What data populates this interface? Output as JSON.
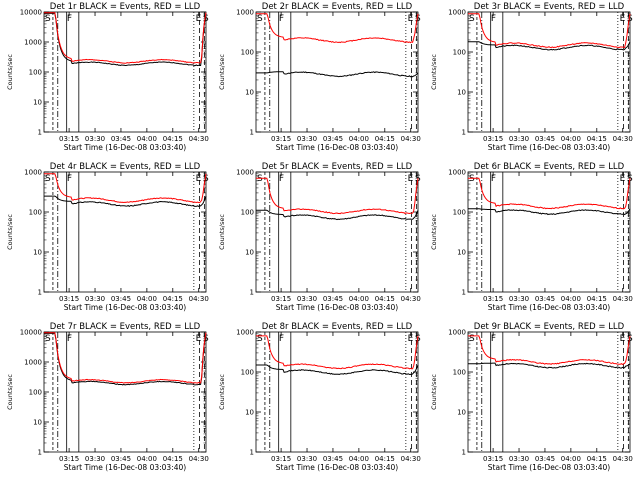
{
  "chart_data": [
    {
      "type": "line",
      "title": "Det 1r BLACK = Events, RED = LLD",
      "xlabel": "Start Time (16-Dec-08 03:03:40)",
      "ylabel": "Counts/sec",
      "y_scale": "log",
      "ylim": [
        1,
        10000
      ],
      "yticks": [
        "1",
        "10",
        "100",
        "1000",
        "10000"
      ],
      "xticks": [
        "03:15",
        "03:30",
        "03:45",
        "04:00",
        "04:15",
        "04:30"
      ],
      "markers": [
        "S",
        "F",
        "E",
        "S"
      ],
      "series": [
        {
          "name": "Events",
          "color": "#000000",
          "start": 9000,
          "plateau": 190,
          "end": 180
        },
        {
          "name": "LLD",
          "color": "#ff0000",
          "start": 9500,
          "plateau": 230,
          "end": 220
        }
      ]
    },
    {
      "type": "line",
      "title": "Det 2r BLACK = Events, RED = LLD",
      "xlabel": "Start Time (16-Dec-08 03:03:40)",
      "ylabel": "Counts/sec",
      "y_scale": "log",
      "ylim": [
        1,
        1000
      ],
      "yticks": [
        "1",
        "10",
        "100",
        "1000"
      ],
      "xticks": [
        "03:15",
        "03:30",
        "03:45",
        "04:00",
        "04:15",
        "04:30"
      ],
      "markers": [
        "S",
        "F",
        "E",
        "S"
      ],
      "series": [
        {
          "name": "Events",
          "color": "#000000",
          "start": 30,
          "plateau": 28,
          "end": 25
        },
        {
          "name": "LLD",
          "color": "#ff0000",
          "start": 900,
          "plateau": 200,
          "end": 210
        }
      ]
    },
    {
      "type": "line",
      "title": "Det 3r BLACK = Events, RED = LLD",
      "xlabel": "Start Time (16-Dec-08 03:03:40)",
      "ylabel": "Counts/sec",
      "y_scale": "log",
      "ylim": [
        1,
        1000
      ],
      "yticks": [
        "1",
        "10",
        "100",
        "1000"
      ],
      "xticks": [
        "03:15",
        "03:30",
        "03:45",
        "04:00",
        "04:15",
        "04:30"
      ],
      "markers": [
        "S",
        "F",
        "E",
        "S"
      ],
      "series": [
        {
          "name": "Events",
          "color": "#000000",
          "start": 180,
          "plateau": 130,
          "end": 125
        },
        {
          "name": "LLD",
          "color": "#ff0000",
          "start": 900,
          "plateau": 150,
          "end": 160
        }
      ]
    },
    {
      "type": "line",
      "title": "Det 4r BLACK = Events, RED = LLD",
      "xlabel": "Start Time (16-Dec-08 03:03:40)",
      "ylabel": "Counts/sec",
      "y_scale": "log",
      "ylim": [
        1,
        1000
      ],
      "yticks": [
        "1",
        "10",
        "100",
        "1000"
      ],
      "xticks": [
        "03:15",
        "03:30",
        "03:45",
        "04:00",
        "04:15",
        "04:30"
      ],
      "markers": [
        "S",
        "F",
        "E",
        "S"
      ],
      "series": [
        {
          "name": "Events",
          "color": "#000000",
          "start": 250,
          "plateau": 160,
          "end": 150
        },
        {
          "name": "LLD",
          "color": "#ff0000",
          "start": 900,
          "plateau": 200,
          "end": 190
        }
      ]
    },
    {
      "type": "line",
      "title": "Det 5r BLACK = Events, RED = LLD",
      "xlabel": "Start Time (16-Dec-08 03:03:40)",
      "ylabel": "Counts/sec",
      "y_scale": "log",
      "ylim": [
        1,
        1000
      ],
      "yticks": [
        "1",
        "10",
        "100",
        "1000"
      ],
      "xticks": [
        "03:15",
        "03:30",
        "03:45",
        "04:00",
        "04:15",
        "04:30"
      ],
      "markers": [
        "S",
        "F",
        "E",
        "S"
      ],
      "series": [
        {
          "name": "Events",
          "color": "#000000",
          "start": 110,
          "plateau": 75,
          "end": 70
        },
        {
          "name": "LLD",
          "color": "#ff0000",
          "start": 700,
          "plateau": 105,
          "end": 100
        }
      ]
    },
    {
      "type": "line",
      "title": "Det 6r BLACK = Events, RED = LLD",
      "xlabel": "Start Time (16-Dec-08 03:03:40)",
      "ylabel": "Counts/sec",
      "y_scale": "log",
      "ylim": [
        1,
        1000
      ],
      "yticks": [
        "1",
        "10",
        "100",
        "1000"
      ],
      "xticks": [
        "03:15",
        "03:30",
        "03:45",
        "04:00",
        "04:15",
        "04:30"
      ],
      "markers": [
        "S",
        "F",
        "E",
        "S"
      ],
      "series": [
        {
          "name": "Events",
          "color": "#000000",
          "start": 120,
          "plateau": 100,
          "end": 90
        },
        {
          "name": "LLD",
          "color": "#ff0000",
          "start": 700,
          "plateau": 140,
          "end": 130
        }
      ]
    },
    {
      "type": "line",
      "title": "Det 7r BLACK = Events, RED = LLD",
      "xlabel": "Start Time (16-Dec-08 03:03:40)",
      "ylabel": "Counts/sec",
      "y_scale": "log",
      "ylim": [
        1,
        10000
      ],
      "yticks": [
        "1",
        "10",
        "100",
        "1000",
        "10000"
      ],
      "xticks": [
        "03:15",
        "03:30",
        "03:45",
        "04:00",
        "04:15",
        "04:30"
      ],
      "markers": [
        "S",
        "F",
        "E",
        "S"
      ],
      "series": [
        {
          "name": "Events",
          "color": "#000000",
          "start": 9000,
          "plateau": 200,
          "end": 190
        },
        {
          "name": "LLD",
          "color": "#ff0000",
          "start": 9500,
          "plateau": 230,
          "end": 220
        }
      ]
    },
    {
      "type": "line",
      "title": "Det 8r BLACK = Events, RED = LLD",
      "xlabel": "Start Time (16-Dec-08 03:03:40)",
      "ylabel": "Counts/sec",
      "y_scale": "log",
      "ylim": [
        1,
        1000
      ],
      "yticks": [
        "1",
        "10",
        "100",
        "1000"
      ],
      "xticks": [
        "03:15",
        "03:30",
        "03:45",
        "04:00",
        "04:15",
        "04:30"
      ],
      "markers": [
        "S",
        "F",
        "E",
        "S"
      ],
      "series": [
        {
          "name": "Events",
          "color": "#000000",
          "start": 150,
          "plateau": 100,
          "end": 95
        },
        {
          "name": "LLD",
          "color": "#ff0000",
          "start": 800,
          "plateau": 140,
          "end": 135
        }
      ]
    },
    {
      "type": "line",
      "title": "Det 9r BLACK = Events, RED = LLD",
      "xlabel": "Start Time (16-Dec-08 03:03:40)",
      "ylabel": "Counts/sec",
      "y_scale": "log",
      "ylim": [
        1,
        1000
      ],
      "yticks": [
        "1",
        "10",
        "100",
        "1000"
      ],
      "xticks": [
        "03:15",
        "03:30",
        "03:45",
        "04:00",
        "04:15",
        "04:30"
      ],
      "markers": [
        "S",
        "F",
        "E",
        "S"
      ],
      "series": [
        {
          "name": "Events",
          "color": "#000000",
          "start": 160,
          "plateau": 145,
          "end": 140
        },
        {
          "name": "LLD",
          "color": "#ff0000",
          "start": 800,
          "plateau": 180,
          "end": 175
        }
      ]
    }
  ]
}
